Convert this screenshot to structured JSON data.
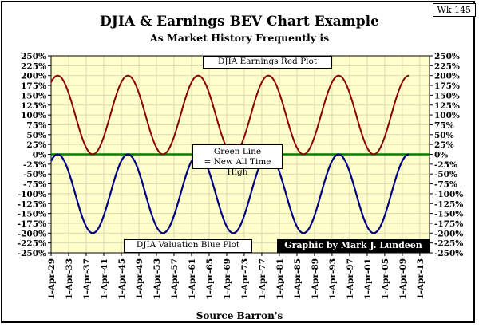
{
  "badge": "Wk 145",
  "title": "DJIA & Earnings BEV Chart Example",
  "subtitle": "As Market History Frequently is",
  "source": "Source Barron's",
  "annotations": {
    "red_plot": "DJIA Earnings Red Plot",
    "green_line_1": "Green Line",
    "green_line_2": "= New All Time High",
    "blue_plot": "DJIA Valuation Blue Plot",
    "credit": "Graphic by Mark J. Lundeen"
  },
  "colors": {
    "red_series": "#8B0000",
    "blue_series": "#000080",
    "green_line": "#008000",
    "plot_background": "#FFFFCC",
    "grid": "#D9D9B3"
  },
  "chart_data": {
    "type": "line",
    "title": "DJIA & Earnings BEV Chart Example",
    "subtitle": "As Market History Frequently is",
    "xlabel": "Source Barron's",
    "ylabel": "",
    "x_tick_labels": [
      "1-Apr-29",
      "1-Apr-33",
      "1-Apr-37",
      "1-Apr-41",
      "1-Apr-45",
      "1-Apr-49",
      "1-Apr-53",
      "1-Apr-57",
      "1-Apr-61",
      "1-Apr-65",
      "1-Apr-69",
      "1-Apr-73",
      "1-Apr-77",
      "1-Apr-81",
      "1-Apr-85",
      "1-Apr-89",
      "1-Apr-93",
      "1-Apr-97",
      "1-Apr-01",
      "1-Apr-05",
      "1-Apr-09",
      "1-Apr-13"
    ],
    "x_tick_years": [
      1929,
      1933,
      1937,
      1941,
      1945,
      1949,
      1953,
      1957,
      1961,
      1965,
      1969,
      1973,
      1977,
      1981,
      1985,
      1989,
      1993,
      1997,
      2001,
      2005,
      2009,
      2013
    ],
    "xlim_years": [
      1929,
      2015.2
    ],
    "y_tick_labels": [
      "250%",
      "225%",
      "200%",
      "175%",
      "150%",
      "125%",
      "100%",
      "75%",
      "50%",
      "25%",
      "0%",
      "-25%",
      "-50%",
      "-75%",
      "-100%",
      "-125%",
      "-150%",
      "-175%",
      "-200%",
      "-225%",
      "-250%"
    ],
    "ylim": [
      -250,
      250
    ],
    "y_ticks_both_sides": true,
    "grid": true,
    "x": [
      1929,
      1930.5,
      1932.5,
      1934.5,
      1936.5,
      1938.5,
      1940.5,
      1942.5,
      1944.5,
      1946.5,
      1948.5,
      1950.5,
      1952.5,
      1954.5,
      1956.5,
      1958.5,
      1960.5,
      1962.5,
      1964.5,
      1966.5,
      1968.5,
      1970.5,
      1972.5,
      1974.5,
      1976.5,
      1978.5,
      1980.5,
      1982.5,
      1984.5,
      1986.5,
      1988.5,
      1990.5,
      1992.5,
      1994.5,
      1996.5,
      1998.5,
      2000.5,
      2002.5,
      2004.5,
      2006.5,
      2008.5,
      2010.5
    ],
    "series": [
      {
        "name": "DJIA Earnings Red Plot",
        "color": "#8B0000",
        "values": [
          183,
          200,
          171,
          100,
          29,
          0,
          29,
          100,
          171,
          200,
          171,
          100,
          29,
          0,
          29,
          100,
          171,
          200,
          171,
          100,
          29,
          0,
          29,
          100,
          171,
          200,
          171,
          100,
          29,
          0,
          29,
          100,
          171,
          200,
          171,
          100,
          29,
          0,
          29,
          100,
          171,
          200
        ]
      },
      {
        "name": "DJIA Valuation Blue Plot",
        "color": "#000080",
        "values": [
          -17,
          0,
          -29,
          -100,
          -171,
          -200,
          -171,
          -100,
          -29,
          0,
          -29,
          -100,
          -171,
          -200,
          -171,
          -100,
          -29,
          0,
          -29,
          -100,
          -171,
          -200,
          -171,
          -100,
          -29,
          0,
          -29,
          -100,
          -171,
          -200,
          -171,
          -100,
          -29,
          0,
          -29,
          -100,
          -171,
          -200,
          -171,
          -100,
          -29,
          0
        ]
      },
      {
        "name": "Green Line = New All Time High",
        "color": "#008000",
        "constant": 0
      }
    ],
    "curve_model": {
      "red": "100 + 100*cos(2*pi*(year-1930.5)/16)",
      "blue": "red - 200"
    }
  }
}
